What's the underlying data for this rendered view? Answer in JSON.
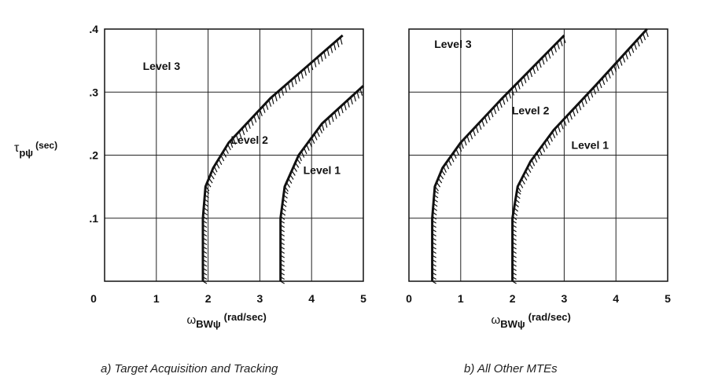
{
  "chart_data": [
    {
      "type": "line",
      "xlabel": "ω",
      "xlabel_sub": "BWψ",
      "xlabel_unit": "(rad/sec)",
      "ylabel": "τ",
      "ylabel_sub": "pψ",
      "ylabel_unit": "(sec)",
      "xlim": [
        0,
        5
      ],
      "ylim": [
        0,
        0.4
      ],
      "x_ticks": [
        "0",
        "1",
        "2",
        "3",
        "4",
        "5"
      ],
      "y_ticks": [
        ".1",
        ".2",
        ".3",
        ".4"
      ],
      "grid": true,
      "caption": "a)  Target Acquisition and Tracking",
      "series": [
        {
          "points": [
            [
              1.9,
              0.0
            ],
            [
              1.9,
              0.1
            ],
            [
              1.95,
              0.15
            ],
            [
              2.1,
              0.18
            ],
            [
              2.4,
              0.22
            ],
            [
              3.2,
              0.29
            ],
            [
              4.6,
              0.39
            ]
          ]
        },
        {
          "points": [
            [
              3.4,
              0.0
            ],
            [
              3.4,
              0.1
            ],
            [
              3.48,
              0.15
            ],
            [
              3.75,
              0.2
            ],
            [
              4.2,
              0.25
            ],
            [
              5.0,
              0.31
            ]
          ]
        }
      ],
      "annotations": [
        {
          "text": "Level 3",
          "x": 1.1,
          "y": 0.335
        },
        {
          "text": "Level 2",
          "x": 2.8,
          "y": 0.218
        },
        {
          "text": "Level 1",
          "x": 4.2,
          "y": 0.17
        }
      ]
    },
    {
      "type": "line",
      "xlabel": "ω",
      "xlabel_sub": "BWψ",
      "xlabel_unit": "(rad/sec)",
      "x_ticks": [
        "0",
        "1",
        "2",
        "3",
        "4",
        "5"
      ],
      "xlim": [
        0,
        5
      ],
      "ylim": [
        0,
        0.4
      ],
      "grid": true,
      "caption": "b)  All Other MTEs",
      "series": [
        {
          "points": [
            [
              0.45,
              0.0
            ],
            [
              0.45,
              0.1
            ],
            [
              0.5,
              0.15
            ],
            [
              0.65,
              0.18
            ],
            [
              1.0,
              0.22
            ],
            [
              1.8,
              0.29
            ],
            [
              3.0,
              0.39
            ]
          ]
        },
        {
          "points": [
            [
              2.0,
              0.0
            ],
            [
              2.0,
              0.1
            ],
            [
              2.1,
              0.15
            ],
            [
              2.35,
              0.19
            ],
            [
              2.8,
              0.24
            ],
            [
              3.6,
              0.31
            ],
            [
              4.6,
              0.4
            ]
          ]
        }
      ],
      "annotations": [
        {
          "text": "Level 3",
          "x": 0.85,
          "y": 0.37
        },
        {
          "text": "Level 2",
          "x": 2.35,
          "y": 0.265
        },
        {
          "text": "Level 1",
          "x": 3.5,
          "y": 0.21
        }
      ]
    }
  ]
}
